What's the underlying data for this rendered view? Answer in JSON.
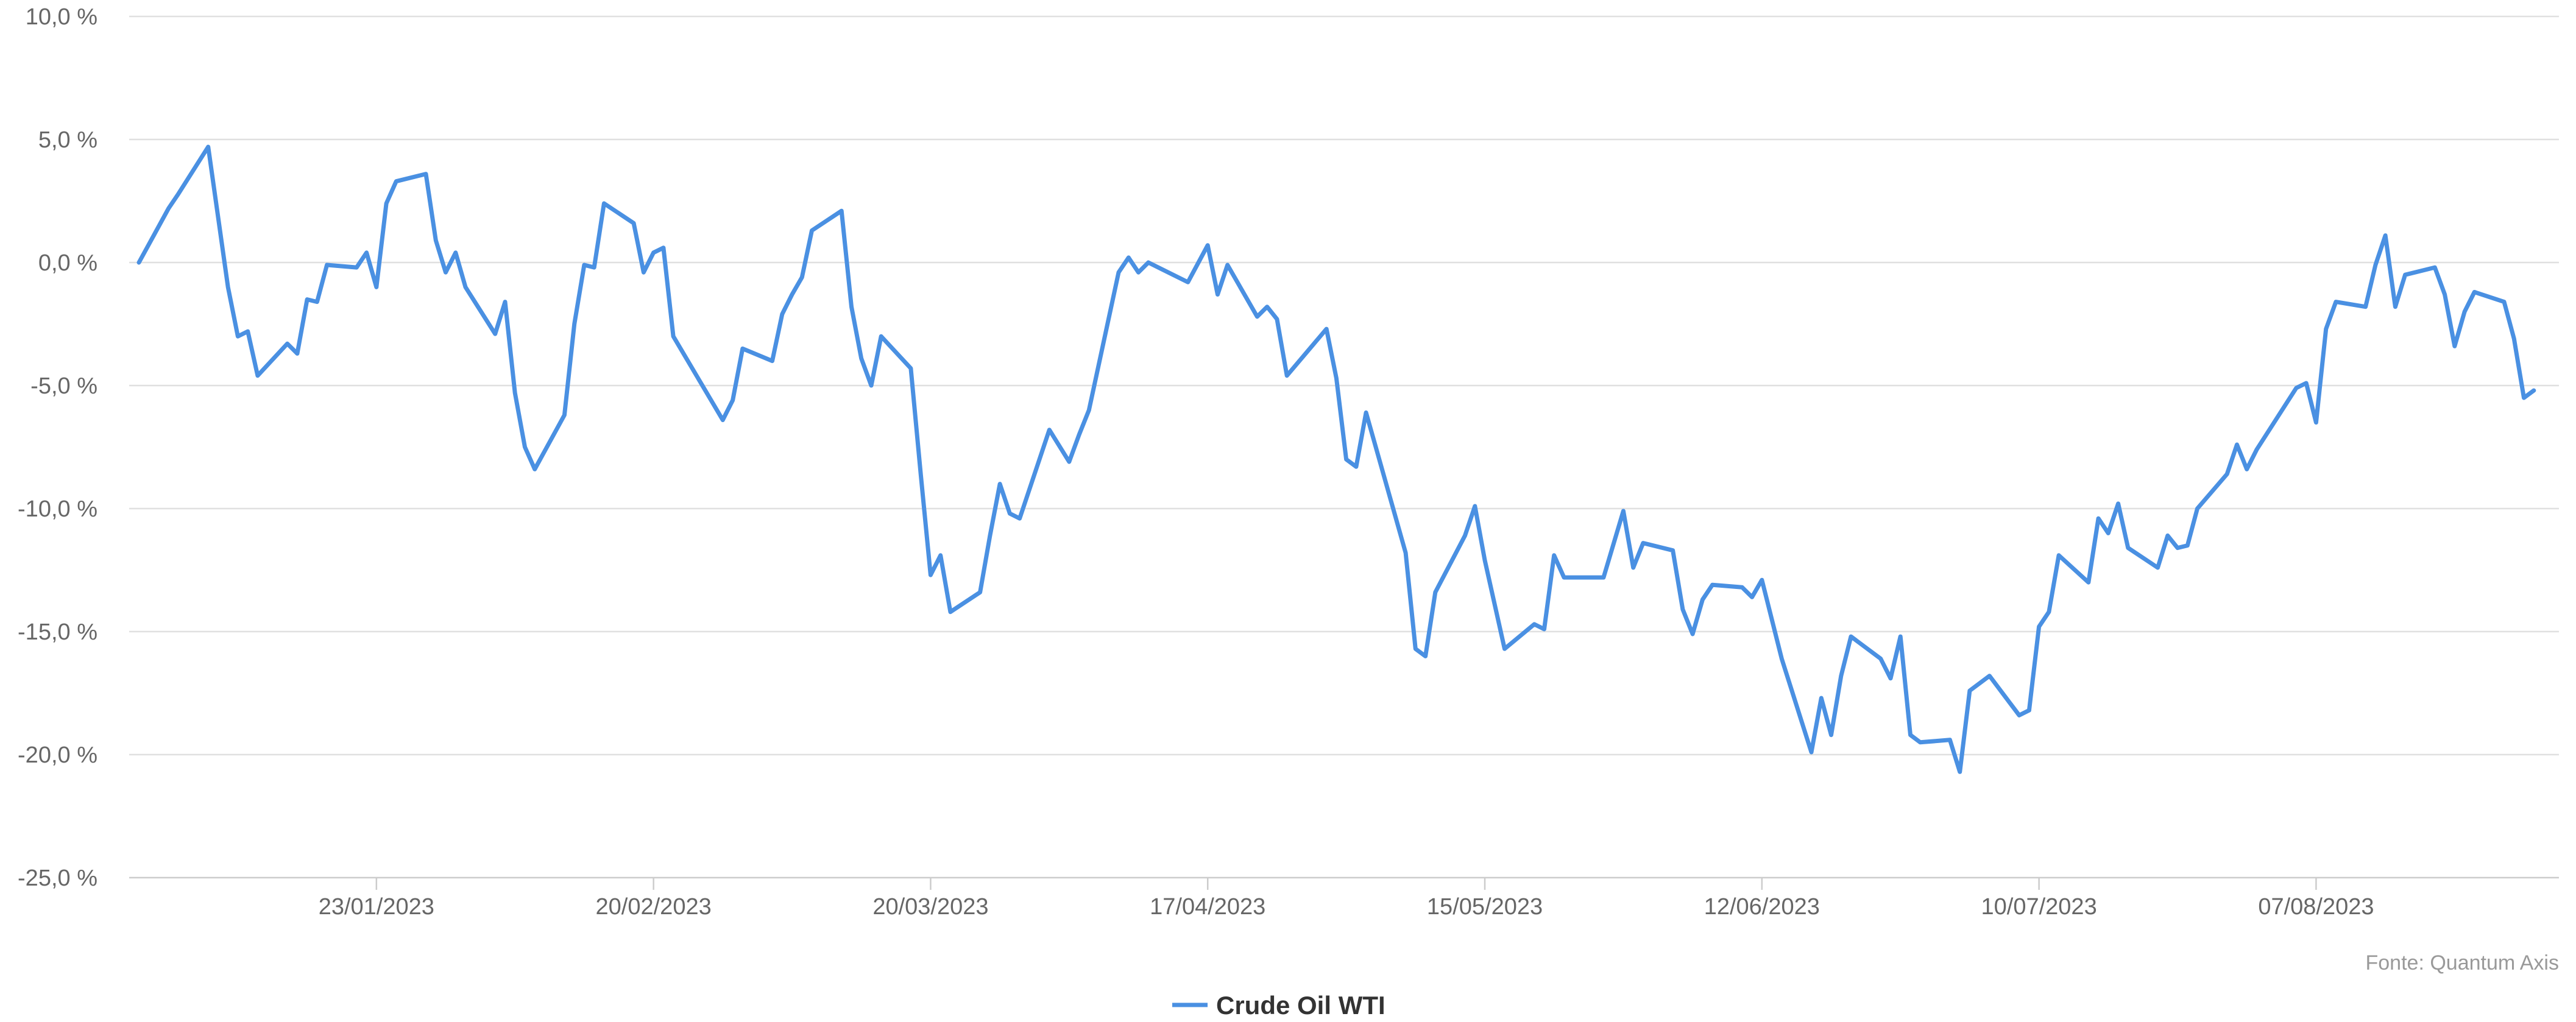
{
  "chart_data": {
    "type": "line",
    "title": "",
    "xlabel": "",
    "ylabel": "",
    "source": "Fonte: Quantum Axis",
    "legend_position": "bottom-center",
    "grid": true,
    "color": "#4a90e2",
    "ylim": [
      -25,
      10
    ],
    "y_ticks": [
      {
        "value": 10,
        "label": "10,0 %"
      },
      {
        "value": 5,
        "label": "5,0 %"
      },
      {
        "value": 0,
        "label": "0,0 %"
      },
      {
        "value": -5,
        "label": "-5,0 %"
      },
      {
        "value": -10,
        "label": "-10,0 %"
      },
      {
        "value": -15,
        "label": "-15,0 %"
      },
      {
        "value": -20,
        "label": "-20,0 %"
      },
      {
        "value": -25,
        "label": "-25,0 %"
      }
    ],
    "x_range": [
      "2022-12-30",
      "2023-08-30"
    ],
    "x_ticks": [
      {
        "date": "2023-01-23",
        "label": "23/01/2023"
      },
      {
        "date": "2023-02-20",
        "label": "20/02/2023"
      },
      {
        "date": "2023-03-20",
        "label": "20/03/2023"
      },
      {
        "date": "2023-04-17",
        "label": "17/04/2023"
      },
      {
        "date": "2023-05-15",
        "label": "15/05/2023"
      },
      {
        "date": "2023-06-12",
        "label": "12/06/2023"
      },
      {
        "date": "2023-07-10",
        "label": "10/07/2023"
      },
      {
        "date": "2023-08-07",
        "label": "07/08/2023"
      }
    ],
    "series": [
      {
        "name": "Crude Oil WTI",
        "points": [
          [
            "2022-12-30",
            0.0
          ],
          [
            "2023-01-02",
            2.2
          ],
          [
            "2023-01-03",
            2.8
          ],
          [
            "2023-01-06",
            4.7
          ],
          [
            "2023-01-08",
            -1.0
          ],
          [
            "2023-01-09",
            -3.0
          ],
          [
            "2023-01-10",
            -2.8
          ],
          [
            "2023-01-11",
            -4.6
          ],
          [
            "2023-01-14",
            -3.3
          ],
          [
            "2023-01-15",
            -3.7
          ],
          [
            "2023-01-16",
            -1.5
          ],
          [
            "2023-01-17",
            -1.6
          ],
          [
            "2023-01-18",
            -0.1
          ],
          [
            "2023-01-21",
            -0.2
          ],
          [
            "2023-01-22",
            0.4
          ],
          [
            "2023-01-23",
            -1.0
          ],
          [
            "2023-01-24",
            2.4
          ],
          [
            "2023-01-25",
            3.3
          ],
          [
            "2023-01-28",
            3.6
          ],
          [
            "2023-01-29",
            0.9
          ],
          [
            "2023-01-30",
            -0.4
          ],
          [
            "2023-01-31",
            0.4
          ],
          [
            "2023-02-01",
            -1.0
          ],
          [
            "2023-02-04",
            -2.9
          ],
          [
            "2023-02-05",
            -1.6
          ],
          [
            "2023-02-06",
            -5.3
          ],
          [
            "2023-02-07",
            -7.5
          ],
          [
            "2023-02-08",
            -8.4
          ],
          [
            "2023-02-11",
            -6.2
          ],
          [
            "2023-02-12",
            -2.5
          ],
          [
            "2023-02-13",
            -0.1
          ],
          [
            "2023-02-14",
            -0.2
          ],
          [
            "2023-02-15",
            2.4
          ],
          [
            "2023-02-18",
            1.6
          ],
          [
            "2023-02-19",
            -0.4
          ],
          [
            "2023-02-20",
            0.4
          ],
          [
            "2023-02-21",
            0.6
          ],
          [
            "2023-02-22",
            -3.0
          ],
          [
            "2023-02-27",
            -6.4
          ],
          [
            "2023-02-28",
            -5.6
          ],
          [
            "2023-03-01",
            -3.5
          ],
          [
            "2023-03-04",
            -4.0
          ],
          [
            "2023-03-05",
            -2.1
          ],
          [
            "2023-03-06",
            -1.3
          ],
          [
            "2023-03-07",
            -0.6
          ],
          [
            "2023-03-08",
            1.3
          ],
          [
            "2023-03-11",
            2.1
          ],
          [
            "2023-03-12",
            -1.8
          ],
          [
            "2023-03-13",
            -3.9
          ],
          [
            "2023-03-14",
            -5.0
          ],
          [
            "2023-03-15",
            -3.0
          ],
          [
            "2023-03-18",
            -4.3
          ],
          [
            "2023-03-19",
            -8.6
          ],
          [
            "2023-03-20",
            -12.7
          ],
          [
            "2023-03-21",
            -11.9
          ],
          [
            "2023-03-22",
            -14.2
          ],
          [
            "2023-03-25",
            -13.4
          ],
          [
            "2023-03-26",
            -11.1
          ],
          [
            "2023-03-27",
            -9.0
          ],
          [
            "2023-03-28",
            -10.2
          ],
          [
            "2023-03-29",
            -10.4
          ],
          [
            "2023-04-01",
            -6.8
          ],
          [
            "2023-04-03",
            -8.1
          ],
          [
            "2023-04-04",
            -7.0
          ],
          [
            "2023-04-05",
            -6.0
          ],
          [
            "2023-04-08",
            -0.4
          ],
          [
            "2023-04-09",
            0.2
          ],
          [
            "2023-04-10",
            -0.4
          ],
          [
            "2023-04-11",
            0.0
          ],
          [
            "2023-04-15",
            -0.8
          ],
          [
            "2023-04-17",
            0.7
          ],
          [
            "2023-04-18",
            -1.3
          ],
          [
            "2023-04-19",
            -0.1
          ],
          [
            "2023-04-22",
            -2.2
          ],
          [
            "2023-04-23",
            -1.8
          ],
          [
            "2023-04-24",
            -2.3
          ],
          [
            "2023-04-25",
            -4.6
          ],
          [
            "2023-04-29",
            -2.7
          ],
          [
            "2023-04-30",
            -4.7
          ],
          [
            "2023-05-01",
            -8.0
          ],
          [
            "2023-05-02",
            -8.3
          ],
          [
            "2023-05-03",
            -6.1
          ],
          [
            "2023-05-07",
            -11.8
          ],
          [
            "2023-05-08",
            -15.7
          ],
          [
            "2023-05-09",
            -16.0
          ],
          [
            "2023-05-10",
            -13.4
          ],
          [
            "2023-05-13",
            -11.1
          ],
          [
            "2023-05-14",
            -9.9
          ],
          [
            "2023-05-15",
            -12.1
          ],
          [
            "2023-05-17",
            -15.7
          ],
          [
            "2023-05-20",
            -14.7
          ],
          [
            "2023-05-21",
            -14.9
          ],
          [
            "2023-05-22",
            -11.9
          ],
          [
            "2023-05-23",
            -12.8
          ],
          [
            "2023-05-27",
            -12.8
          ],
          [
            "2023-05-29",
            -10.1
          ],
          [
            "2023-05-30",
            -12.4
          ],
          [
            "2023-05-31",
            -11.4
          ],
          [
            "2023-06-03",
            -11.7
          ],
          [
            "2023-06-04",
            -14.1
          ],
          [
            "2023-06-05",
            -15.1
          ],
          [
            "2023-06-06",
            -13.7
          ],
          [
            "2023-06-07",
            -13.1
          ],
          [
            "2023-06-10",
            -13.2
          ],
          [
            "2023-06-11",
            -13.6
          ],
          [
            "2023-06-12",
            -12.9
          ],
          [
            "2023-06-14",
            -16.1
          ],
          [
            "2023-06-17",
            -19.9
          ],
          [
            "2023-06-18",
            -17.7
          ],
          [
            "2023-06-19",
            -19.2
          ],
          [
            "2023-06-20",
            -16.8
          ],
          [
            "2023-06-21",
            -15.2
          ],
          [
            "2023-06-24",
            -16.1
          ],
          [
            "2023-06-25",
            -16.9
          ],
          [
            "2023-06-26",
            -15.2
          ],
          [
            "2023-06-27",
            -19.2
          ],
          [
            "2023-06-28",
            -19.5
          ],
          [
            "2023-07-01",
            -19.4
          ],
          [
            "2023-07-02",
            -20.7
          ],
          [
            "2023-07-03",
            -17.4
          ],
          [
            "2023-07-04",
            -17.1
          ],
          [
            "2023-07-05",
            -16.8
          ],
          [
            "2023-07-08",
            -18.4
          ],
          [
            "2023-07-09",
            -18.2
          ],
          [
            "2023-07-10",
            -14.8
          ],
          [
            "2023-07-11",
            -14.2
          ],
          [
            "2023-07-12",
            -11.9
          ],
          [
            "2023-07-15",
            -13.0
          ],
          [
            "2023-07-16",
            -10.4
          ],
          [
            "2023-07-17",
            -11.0
          ],
          [
            "2023-07-18",
            -9.8
          ],
          [
            "2023-07-19",
            -11.6
          ],
          [
            "2023-07-22",
            -12.4
          ],
          [
            "2023-07-23",
            -11.1
          ],
          [
            "2023-07-24",
            -11.6
          ],
          [
            "2023-07-25",
            -11.5
          ],
          [
            "2023-07-26",
            -10.0
          ],
          [
            "2023-07-29",
            -8.6
          ],
          [
            "2023-07-30",
            -7.4
          ],
          [
            "2023-07-31",
            -8.4
          ],
          [
            "2023-08-01",
            -7.6
          ],
          [
            "2023-08-05",
            -5.1
          ],
          [
            "2023-08-06",
            -4.9
          ],
          [
            "2023-08-07",
            -6.5
          ],
          [
            "2023-08-08",
            -2.7
          ],
          [
            "2023-08-09",
            -1.6
          ],
          [
            "2023-08-12",
            -1.8
          ],
          [
            "2023-08-13",
            -0.1
          ],
          [
            "2023-08-14",
            1.1
          ],
          [
            "2023-08-15",
            -1.8
          ],
          [
            "2023-08-16",
            -0.5
          ],
          [
            "2023-08-19",
            -0.2
          ],
          [
            "2023-08-20",
            -1.3
          ],
          [
            "2023-08-21",
            -3.4
          ],
          [
            "2023-08-22",
            -2.0
          ],
          [
            "2023-08-23",
            -1.2
          ],
          [
            "2023-08-26",
            -1.6
          ],
          [
            "2023-08-27",
            -3.1
          ],
          [
            "2023-08-28",
            -5.5
          ],
          [
            "2023-08-29",
            -5.2
          ]
        ]
      }
    ]
  }
}
